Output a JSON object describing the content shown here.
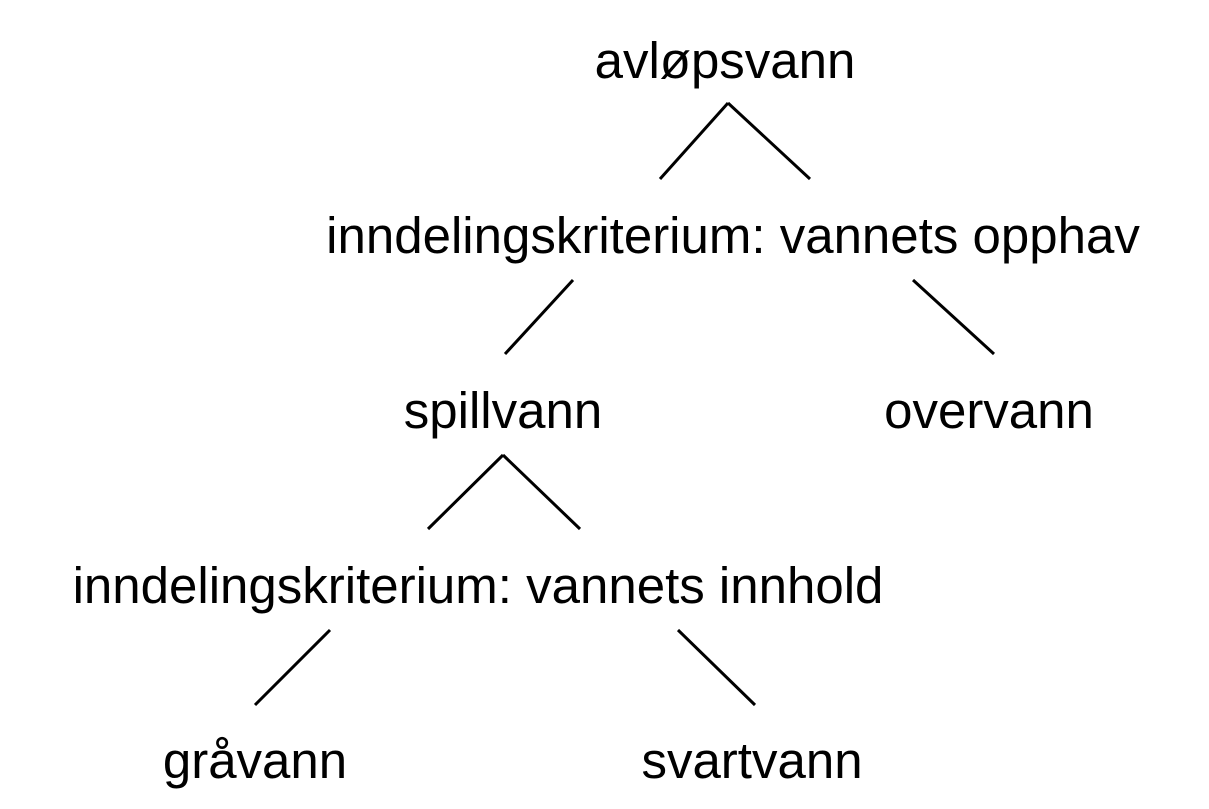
{
  "diagram": {
    "root": "avløpsvann",
    "criterion_origin": "inndelingskriterium: vannets opphav",
    "wastewater": "spillvann",
    "stormwater": "overvann",
    "criterion_content": "inndelingskriterium: vannets innhold",
    "greywater": "gråvann",
    "blackwater": "svartvann"
  },
  "style": {
    "line_color": "#000000",
    "text_color": "#000000",
    "background": "#ffffff"
  }
}
